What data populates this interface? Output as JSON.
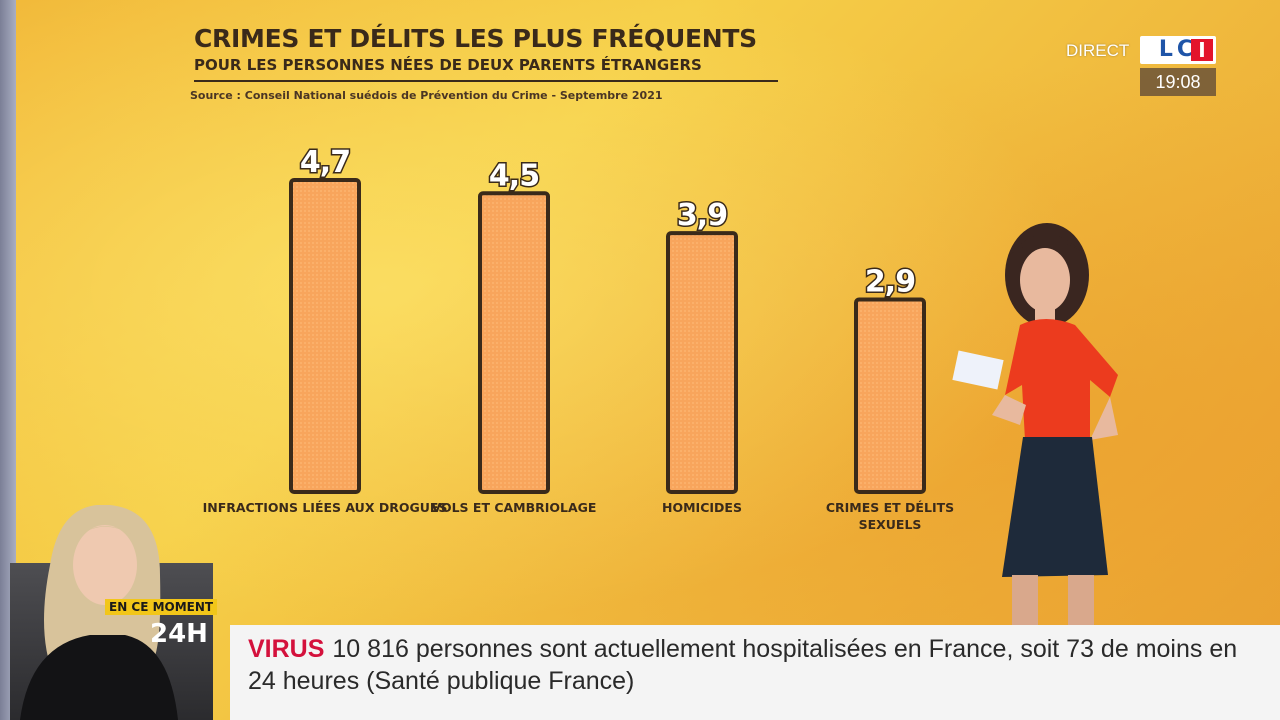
{
  "graphic": {
    "title": "CRIMES ET DÉLITS LES PLUS FRÉQUENTS",
    "subtitle": "POUR LES PERSONNES NÉES DE DEUX PARENTS ÉTRANGERS",
    "source": "Source : Conseil National suédois de Prévention du Crime - Septembre 2021"
  },
  "chart_data": {
    "type": "bar",
    "title": "CRIMES ET DÉLITS LES PLUS FRÉQUENTS",
    "subtitle": "POUR LES PERSONNES NÉES DE DEUX PARENTS ÉTRANGERS",
    "categories": [
      [
        "INFRACTIONS LIÉES AUX DROGUES"
      ],
      [
        "VOLS ET CAMBRIOLAGE"
      ],
      [
        "HOMICIDES"
      ],
      [
        "CRIMES ET DÉLITS",
        "SEXUELS"
      ]
    ],
    "values": [
      4.7,
      4.5,
      3.9,
      2.9
    ],
    "value_labels": [
      "4,7",
      "4,5",
      "3,9",
      "2,9"
    ],
    "ylim": [
      0,
      4.7
    ],
    "grid": false,
    "bar_color": "#f8a55c",
    "bar_outline": "#3a2a1a"
  },
  "broadcast": {
    "direct_label": "DIRECT",
    "logo_text": "LC",
    "logo_dot": "I",
    "clock": "19:08",
    "en_ce_moment": "EN CE MOMENT",
    "hours": "24H"
  },
  "ticker": {
    "tag": "VIRUS",
    "text": "10 816 personnes sont actuellement hospitalisées en France, soit 73 de moins en 24 heures (Santé publique France)",
    "tag_color": "#d4113c"
  }
}
